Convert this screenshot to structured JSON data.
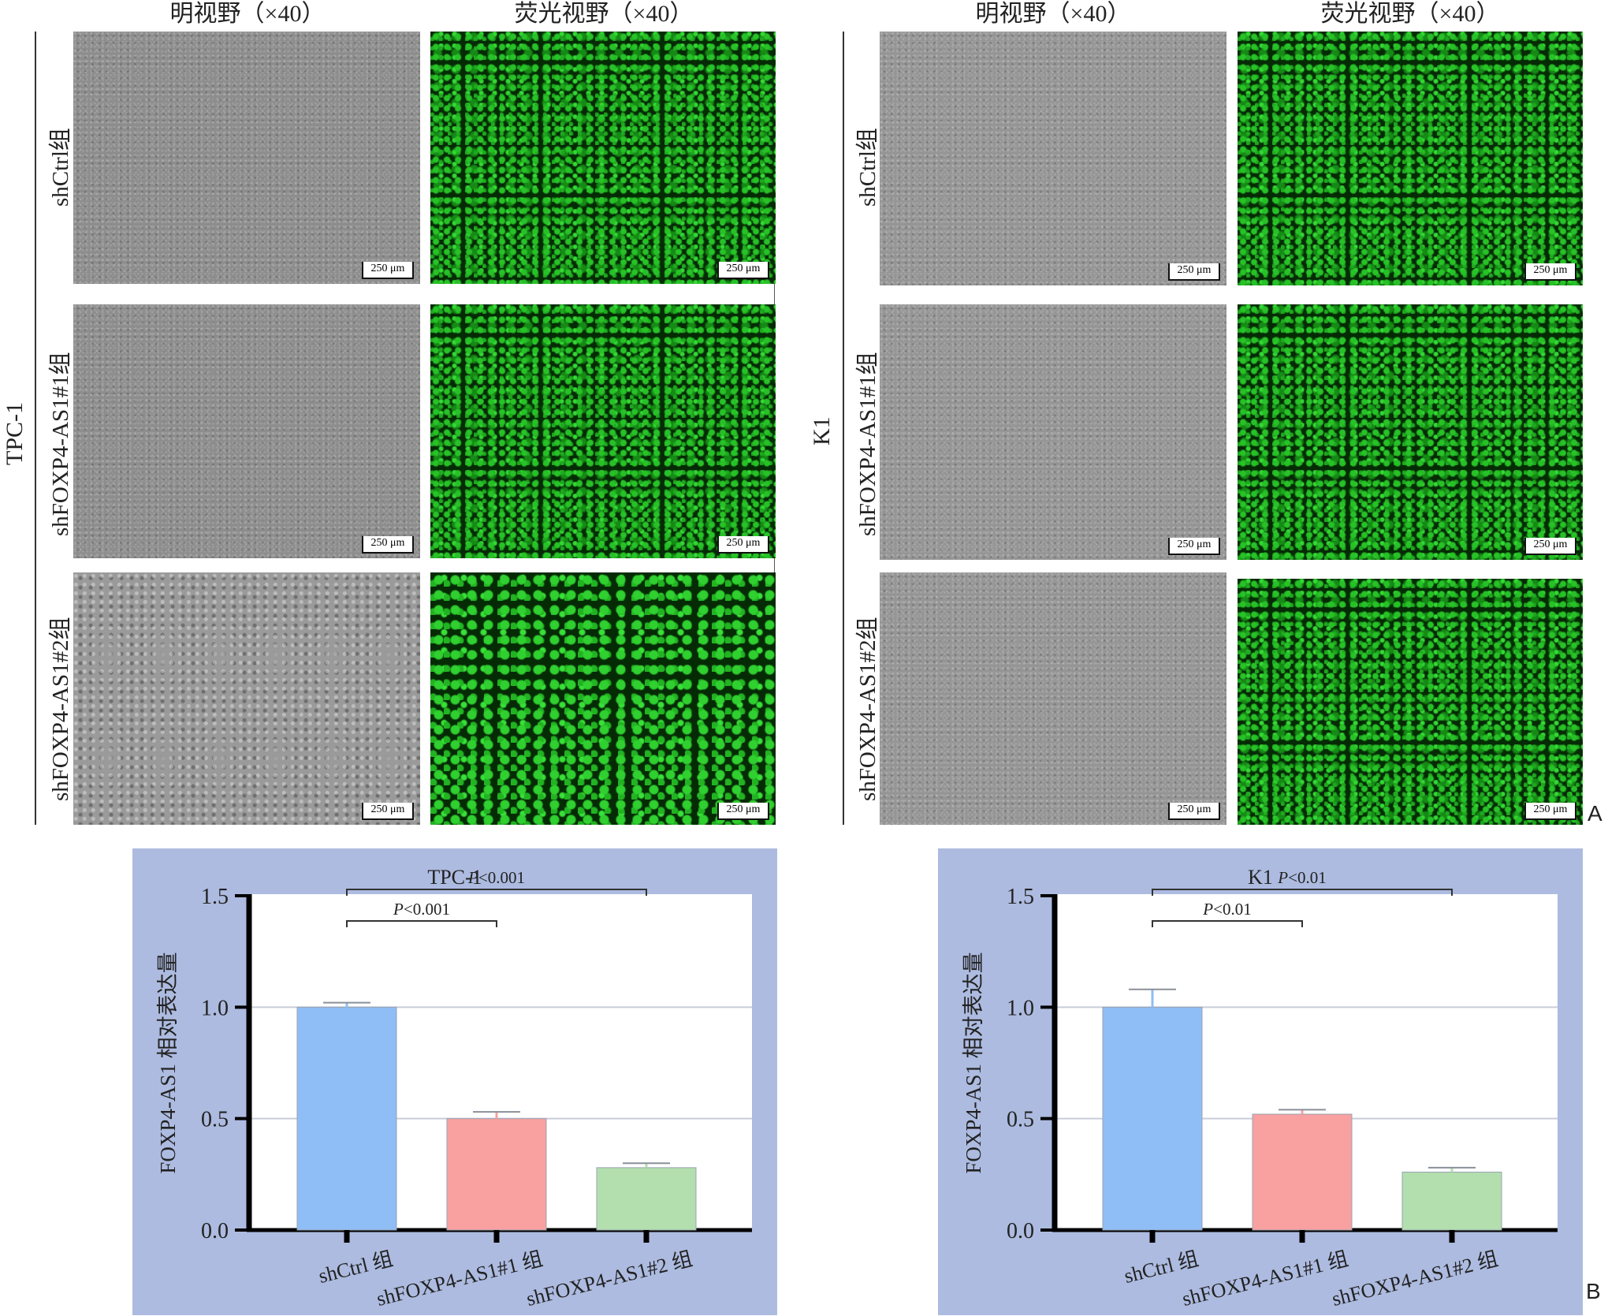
{
  "figure": {
    "column_headers": [
      "明视野（×40）",
      "荧光视野（×40）"
    ],
    "cell_lines": [
      {
        "name": "TPC-1",
        "rows": [
          {
            "label": "shCtrl组",
            "scale_bar_bright": "250 μm",
            "scale_bar_fluor": "250 μm"
          },
          {
            "label": "shFOXP4-AS1#1组",
            "scale_bar_bright": "250 μm",
            "scale_bar_fluor": "250 μm"
          },
          {
            "label": "shFOXP4-AS1#2组",
            "scale_bar_bright": "250 μm",
            "scale_bar_fluor": "250 μm"
          }
        ]
      },
      {
        "name": "K1",
        "rows": [
          {
            "label": "shCtrl组",
            "scale_bar_bright": "250 μm",
            "scale_bar_fluor": "250 μm"
          },
          {
            "label": "shFOXP4-AS1#1组",
            "scale_bar_bright": "250 μm",
            "scale_bar_fluor": "250 μm"
          },
          {
            "label": "shFOXP4-AS1#2组",
            "scale_bar_bright": "250 μm",
            "scale_bar_fluor": "250 μm"
          }
        ]
      }
    ],
    "panel_letters": [
      "A",
      "B"
    ]
  },
  "chart_data": [
    {
      "type": "bar",
      "title": "TPC-1",
      "ylabel": "FOXP4-AS1 相对表达量",
      "xlabel": "",
      "categories": [
        "shCtrl 组",
        "shFOXP4-AS1#1 组",
        "shFOXP4-AS1#2 组"
      ],
      "values": [
        1.0,
        0.5,
        0.28
      ],
      "errors": [
        0.02,
        0.03,
        0.02
      ],
      "colors": [
        "#8fbdf6",
        "#f9a0a0",
        "#b2dfad"
      ],
      "ylim": [
        0,
        1.5
      ],
      "yticks": [
        "0.0",
        "0.5",
        "1.0",
        "1.5"
      ],
      "gridlines": [
        0.5,
        1.0
      ],
      "significance": [
        {
          "from": 0,
          "to": 1,
          "label": "P<0.001"
        },
        {
          "from": 0,
          "to": 2,
          "label": "P<0.001"
        }
      ]
    },
    {
      "type": "bar",
      "title": "K1",
      "ylabel": "FOXP4-AS1 相对表达量",
      "xlabel": "",
      "categories": [
        "shCtrl 组",
        "shFOXP4-AS1#1 组",
        "shFOXP4-AS1#2 组"
      ],
      "values": [
        1.0,
        0.52,
        0.26
      ],
      "errors": [
        0.08,
        0.02,
        0.02
      ],
      "colors": [
        "#8fbdf6",
        "#f9a0a0",
        "#b2dfad"
      ],
      "ylim": [
        0,
        1.5
      ],
      "yticks": [
        "0.0",
        "0.5",
        "1.0",
        "1.5"
      ],
      "gridlines": [
        0.5,
        1.0
      ],
      "significance": [
        {
          "from": 0,
          "to": 1,
          "label": "P<0.01"
        },
        {
          "from": 0,
          "to": 2,
          "label": "P<0.01"
        }
      ]
    }
  ]
}
